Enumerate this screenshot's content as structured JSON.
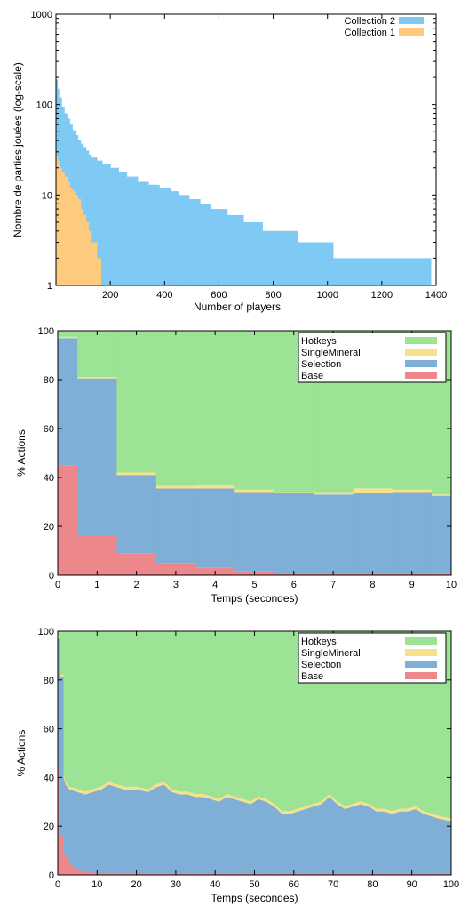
{
  "colors": {
    "collection1": "#fdca7e",
    "collection2": "#7fc9f5",
    "hotkeys": "#9ce395",
    "singlemineral": "#f6e28a",
    "selection": "#7faed6",
    "base": "#ec888b"
  },
  "chart_data": [
    {
      "type": "area",
      "title": "",
      "xlabel": "Number of players",
      "ylabel": "Nombre de parties jouées (log-scale)",
      "y_scale": "log",
      "xlim": [
        0,
        1400
      ],
      "ylim": [
        1,
        1000
      ],
      "x_ticks": [
        "200",
        "400",
        "600",
        "800",
        "1000",
        "1200",
        "1400"
      ],
      "y_ticks": [
        "1",
        "10",
        "100",
        "1000"
      ],
      "legend_position": "top-right",
      "series": [
        {
          "name": "Collection 2",
          "color_key": "collection2",
          "points": [
            [
              0,
              190
            ],
            [
              5,
              150
            ],
            [
              10,
              120
            ],
            [
              20,
              95
            ],
            [
              30,
              80
            ],
            [
              40,
              70
            ],
            [
              50,
              60
            ],
            [
              60,
              52
            ],
            [
              70,
              46
            ],
            [
              80,
              41
            ],
            [
              90,
              37
            ],
            [
              100,
              34
            ],
            [
              110,
              31
            ],
            [
              120,
              28
            ],
            [
              130,
              26
            ],
            [
              150,
              24
            ],
            [
              170,
              22
            ],
            [
              200,
              20
            ],
            [
              230,
              18
            ],
            [
              260,
              16
            ],
            [
              300,
              14
            ],
            [
              340,
              13
            ],
            [
              380,
              12
            ],
            [
              420,
              11
            ],
            [
              450,
              10
            ],
            [
              490,
              9
            ],
            [
              530,
              8
            ],
            [
              570,
              7
            ],
            [
              630,
              6
            ],
            [
              690,
              5
            ],
            [
              760,
              4
            ],
            [
              890,
              3
            ],
            [
              1020,
              2
            ],
            [
              1380,
              2
            ]
          ]
        },
        {
          "name": "Collection 1",
          "color_key": "collection1",
          "points": [
            [
              0,
              27
            ],
            [
              5,
              24
            ],
            [
              10,
              20
            ],
            [
              20,
              18
            ],
            [
              30,
              16
            ],
            [
              40,
              14
            ],
            [
              50,
              12
            ],
            [
              60,
              11
            ],
            [
              70,
              10
            ],
            [
              80,
              9
            ],
            [
              90,
              7
            ],
            [
              100,
              6
            ],
            [
              110,
              5
            ],
            [
              120,
              4
            ],
            [
              130,
              3
            ],
            [
              140,
              3
            ],
            [
              150,
              2
            ],
            [
              165,
              2
            ]
          ]
        }
      ]
    },
    {
      "type": "area",
      "stacked": true,
      "title": "",
      "xlabel": "Temps (secondes)",
      "ylabel": "% Actions",
      "xlim": [
        0,
        10
      ],
      "ylim": [
        0,
        100
      ],
      "x_ticks": [
        "0",
        "1",
        "2",
        "3",
        "4",
        "5",
        "6",
        "7",
        "8",
        "9",
        "10"
      ],
      "y_ticks": [
        "0",
        "20",
        "40",
        "60",
        "80",
        "100"
      ],
      "legend_position": "top-right",
      "legend": [
        "Hotkeys",
        "SingleMineral",
        "Selection",
        "Base"
      ],
      "x_edges": [
        0,
        0.5,
        1.5,
        2.5,
        3.5,
        4.5,
        5.5,
        6.5,
        7.5,
        8.5,
        9.5,
        10
      ],
      "series": [
        {
          "name": "Base",
          "color_key": "base",
          "values": [
            45,
            16,
            9,
            5,
            3,
            1.5,
            1,
            1,
            1,
            1,
            0.5
          ]
        },
        {
          "name": "Selection",
          "color_key": "selection",
          "values": [
            52,
            64.5,
            32,
            30.5,
            32.5,
            32.5,
            32.5,
            32,
            32.5,
            33,
            32
          ]
        },
        {
          "name": "SingleMineral",
          "color_key": "singlemineral",
          "values": [
            0.5,
            0.5,
            1,
            1,
            1.5,
            1,
            0.5,
            1,
            2,
            1,
            0.5
          ]
        },
        {
          "name": "Hotkeys",
          "color_key": "hotkeys",
          "values": [
            2.5,
            19,
            58,
            63.5,
            63,
            65,
            66,
            66,
            64.5,
            65,
            67
          ]
        }
      ]
    },
    {
      "type": "area",
      "stacked": true,
      "title": "",
      "xlabel": "Temps (secondes)",
      "ylabel": "% Actions",
      "xlim": [
        0,
        100
      ],
      "ylim": [
        0,
        100
      ],
      "x_ticks": [
        "0",
        "10",
        "20",
        "30",
        "40",
        "50",
        "60",
        "70",
        "80",
        "90",
        "100"
      ],
      "y_ticks": [
        "0",
        "20",
        "40",
        "60",
        "80",
        "100"
      ],
      "legend_position": "top-right",
      "legend": [
        "Hotkeys",
        "SingleMineral",
        "Selection",
        "Base"
      ],
      "top_of_selection_points": [
        [
          0,
          97
        ],
        [
          0.5,
          97
        ],
        [
          0.5,
          81
        ],
        [
          1.5,
          81
        ],
        [
          1.5,
          40
        ],
        [
          2,
          37
        ],
        [
          3,
          35
        ],
        [
          5,
          34
        ],
        [
          7,
          33
        ],
        [
          9,
          34
        ],
        [
          11,
          35
        ],
        [
          13,
          37
        ],
        [
          15,
          36
        ],
        [
          17,
          35
        ],
        [
          20,
          35
        ],
        [
          23,
          34
        ],
        [
          25,
          36
        ],
        [
          27,
          37
        ],
        [
          29,
          34
        ],
        [
          31,
          33
        ],
        [
          33,
          33
        ],
        [
          35,
          32
        ],
        [
          37,
          32
        ],
        [
          39,
          31
        ],
        [
          41,
          30
        ],
        [
          43,
          32
        ],
        [
          45,
          31
        ],
        [
          47,
          30
        ],
        [
          49,
          29
        ],
        [
          51,
          31
        ],
        [
          53,
          30
        ],
        [
          55,
          28
        ],
        [
          57,
          25
        ],
        [
          59,
          25
        ],
        [
          61,
          26
        ],
        [
          63,
          27
        ],
        [
          65,
          28
        ],
        [
          67,
          29
        ],
        [
          69,
          32
        ],
        [
          71,
          29
        ],
        [
          73,
          27
        ],
        [
          75,
          28
        ],
        [
          77,
          29
        ],
        [
          79,
          28
        ],
        [
          81,
          26
        ],
        [
          83,
          26
        ],
        [
          85,
          25
        ],
        [
          87,
          26
        ],
        [
          89,
          26
        ],
        [
          91,
          27
        ],
        [
          93,
          25
        ],
        [
          95,
          24
        ],
        [
          97,
          23
        ],
        [
          100,
          22
        ]
      ],
      "singlemineral_thickness": 1.2,
      "base_points": [
        [
          0,
          45
        ],
        [
          0.5,
          45
        ],
        [
          0.5,
          16
        ],
        [
          1.5,
          16
        ],
        [
          1.5,
          9
        ],
        [
          2.5,
          7
        ],
        [
          3.5,
          4
        ],
        [
          4.5,
          2.5
        ],
        [
          6,
          1.5
        ],
        [
          8,
          1
        ],
        [
          10,
          0.8
        ],
        [
          100,
          0.3
        ]
      ]
    }
  ]
}
